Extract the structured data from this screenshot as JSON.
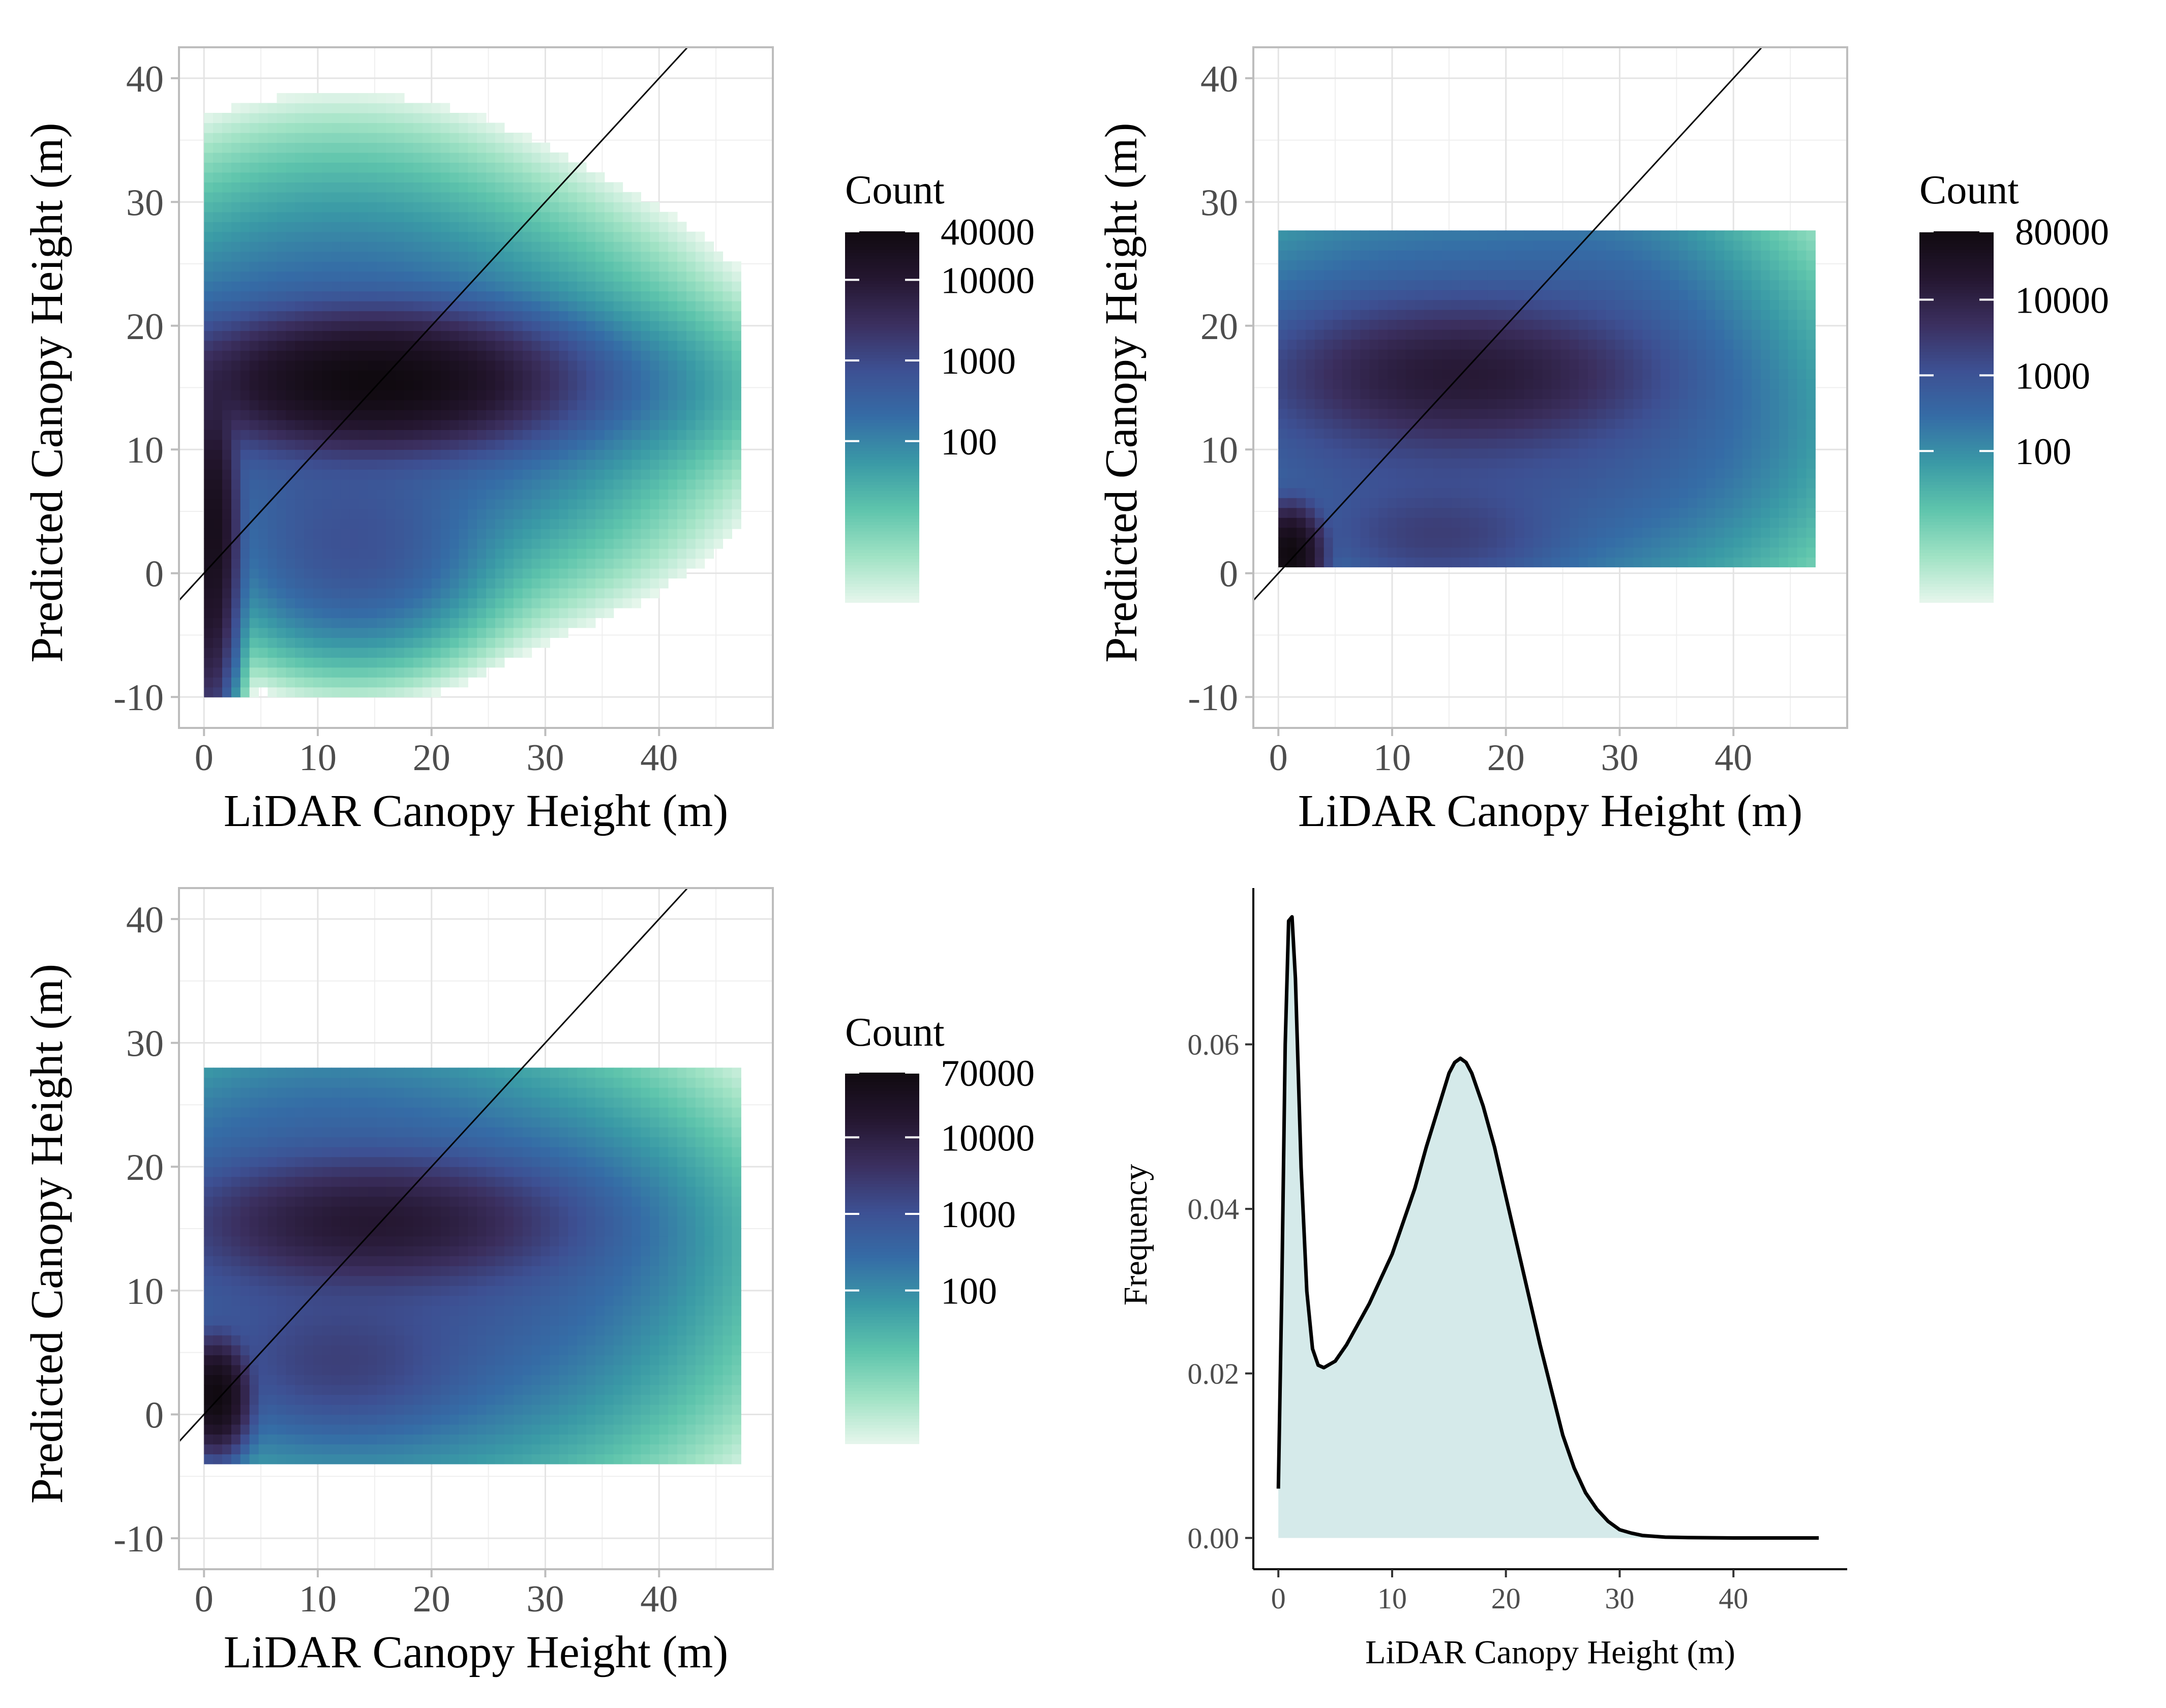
{
  "chart_data": [
    {
      "type": "heatmap",
      "xlabel": "LiDAR Canopy Height (m)",
      "ylabel": "Predicted Canopy Height (m)",
      "xlim": [
        -2.2,
        50
      ],
      "ylim": [
        -12.5,
        42.5
      ],
      "xticks": [
        0,
        10,
        20,
        30,
        40
      ],
      "yticks": [
        -10,
        0,
        10,
        20,
        30,
        40
      ],
      "grid": true,
      "reference_line": "1:1",
      "scale": "log",
      "legend": {
        "title": "Count",
        "position": "right",
        "max": 40000,
        "ticks": [
          40000,
          10000,
          1000,
          100
        ]
      },
      "density_blobs": [
        {
          "cx": 15,
          "cy": 15.5,
          "sx": 6.5,
          "sy": 2.2,
          "peak": 40000
        },
        {
          "cx": 12,
          "cy": 14,
          "sx": 11,
          "sy": 6,
          "peak": 700
        },
        {
          "cx": 0.8,
          "cy": 3.5,
          "sx": 0.9,
          "sy": 5,
          "peak": 25000
        },
        {
          "cx": 0.6,
          "cy": -5,
          "sx": 0.6,
          "sy": 3.5,
          "peak": 4000
        },
        {
          "cx": 13,
          "cy": 2,
          "sx": 5,
          "sy": 3.5,
          "peak": 600
        },
        {
          "cx": 32,
          "cy": 15,
          "sx": 7,
          "sy": 3,
          "peak": 150
        },
        {
          "cx": 12,
          "cy": 25,
          "sx": 8,
          "sy": 5,
          "peak": 40
        }
      ],
      "extent": {
        "x": [
          0,
          47
        ],
        "y": [
          -10,
          40
        ]
      }
    },
    {
      "type": "heatmap",
      "xlabel": "LiDAR Canopy Height (m)",
      "ylabel": "Predicted Canopy Height (m)",
      "xlim": [
        -2.2,
        50
      ],
      "ylim": [
        -12.5,
        42.5
      ],
      "xticks": [
        0,
        10,
        20,
        30,
        40
      ],
      "yticks": [
        -10,
        0,
        10,
        20,
        30,
        40
      ],
      "grid": true,
      "reference_line": "1:1",
      "scale": "log",
      "legend": {
        "title": "Count",
        "position": "right",
        "max": 80000,
        "ticks": [
          80000,
          10000,
          1000,
          100
        ]
      },
      "density_blobs": [
        {
          "cx": 16,
          "cy": 16,
          "sx": 7,
          "sy": 2.5,
          "peak": 15000
        },
        {
          "cx": 15,
          "cy": 13,
          "sx": 12,
          "sy": 7,
          "peak": 1500
        },
        {
          "cx": 1,
          "cy": 1.5,
          "sx": 1.2,
          "sy": 1.6,
          "peak": 80000
        },
        {
          "cx": 14,
          "cy": 3,
          "sx": 5,
          "sy": 2,
          "peak": 2000
        },
        {
          "cx": 28,
          "cy": 20,
          "sx": 6,
          "sy": 5,
          "peak": 300
        },
        {
          "cx": 35,
          "cy": 12,
          "sx": 7,
          "sy": 5,
          "peak": 120
        }
      ],
      "extent": {
        "x": [
          0,
          47
        ],
        "y": [
          0.5,
          27
        ]
      }
    },
    {
      "type": "heatmap",
      "xlabel": "LiDAR Canopy Height (m)",
      "ylabel": "Predicted Canopy Height (m)",
      "xlim": [
        -2.2,
        50
      ],
      "ylim": [
        -12.5,
        42.5
      ],
      "xticks": [
        0,
        10,
        20,
        30,
        40
      ],
      "yticks": [
        -10,
        0,
        10,
        20,
        30,
        40
      ],
      "grid": true,
      "reference_line": "1:1",
      "scale": "log",
      "legend": {
        "title": "Count",
        "position": "right",
        "max": 70000,
        "ticks": [
          70000,
          10000,
          1000,
          100
        ]
      },
      "density_blobs": [
        {
          "cx": 15,
          "cy": 15.5,
          "sx": 7,
          "sy": 2.2,
          "peak": 15000
        },
        {
          "cx": 13,
          "cy": 12,
          "sx": 12,
          "sy": 7,
          "peak": 1200
        },
        {
          "cx": 1,
          "cy": 1.5,
          "sx": 1.2,
          "sy": 1.8,
          "peak": 70000
        },
        {
          "cx": 12,
          "cy": 4,
          "sx": 5,
          "sy": 2.5,
          "peak": 1500
        },
        {
          "cx": 30,
          "cy": 15,
          "sx": 7,
          "sy": 4,
          "peak": 200
        },
        {
          "cx": 10,
          "cy": 24,
          "sx": 8,
          "sy": 3.5,
          "peak": 60
        }
      ],
      "extent": {
        "x": [
          0,
          47
        ],
        "y": [
          -4,
          28
        ]
      }
    },
    {
      "type": "area",
      "xlabel": "LiDAR Canopy Height (m)",
      "ylabel": "Frequency",
      "xlim": [
        -2.2,
        50
      ],
      "ylim": [
        -0.0038,
        0.079
      ],
      "xticks": [
        0,
        10,
        20,
        30,
        40
      ],
      "yticks": [
        "0.00",
        "0.02",
        "0.04",
        "0.06"
      ],
      "grid": false,
      "fill_color": "#d5eaea",
      "x": [
        0.0,
        0.3,
        0.6,
        0.9,
        1.2,
        1.5,
        2.0,
        2.5,
        3.0,
        3.5,
        4.0,
        5.0,
        6.0,
        7.0,
        8.0,
        9.0,
        10.0,
        11.0,
        12.0,
        13.0,
        14.0,
        15.0,
        15.5,
        16.0,
        16.5,
        17.0,
        18.0,
        19.0,
        20.0,
        21.0,
        22.0,
        23.0,
        24.0,
        25.0,
        26.0,
        27.0,
        28.0,
        29.0,
        30.0,
        31.0,
        32.0,
        34.0,
        36.0,
        40.0,
        44.0,
        47.5
      ],
      "y": [
        0.006,
        0.03,
        0.06,
        0.075,
        0.0755,
        0.068,
        0.045,
        0.03,
        0.023,
        0.021,
        0.0207,
        0.0215,
        0.0235,
        0.026,
        0.0285,
        0.0315,
        0.0345,
        0.0385,
        0.0425,
        0.0475,
        0.052,
        0.0565,
        0.0578,
        0.0583,
        0.0578,
        0.0565,
        0.0525,
        0.0475,
        0.0415,
        0.0355,
        0.0295,
        0.0235,
        0.018,
        0.0125,
        0.0085,
        0.0055,
        0.0035,
        0.002,
        0.001,
        0.0006,
        0.0003,
        0.0001,
        5e-05,
        0.0,
        0.0,
        0.0
      ]
    }
  ],
  "colors": {
    "scale": [
      "#e6f6ec",
      "#9fe2c4",
      "#5ec4ac",
      "#3a9aa6",
      "#356ca6",
      "#3d5093",
      "#3b2f5f",
      "#24162f",
      "#100a10"
    ],
    "grid": "#e4e4e4",
    "panel_border": "#bdbdbd",
    "tick_text": "#4d4d4d"
  }
}
